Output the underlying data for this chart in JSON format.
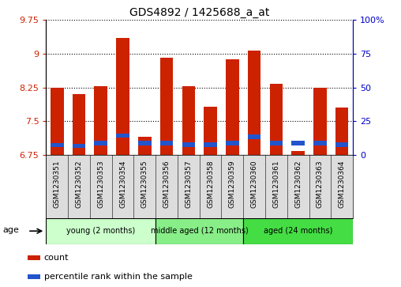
{
  "title": "GDS4892 / 1425688_a_at",
  "samples": [
    "GSM1230351",
    "GSM1230352",
    "GSM1230353",
    "GSM1230354",
    "GSM1230355",
    "GSM1230356",
    "GSM1230357",
    "GSM1230358",
    "GSM1230359",
    "GSM1230360",
    "GSM1230361",
    "GSM1230362",
    "GSM1230363",
    "GSM1230364"
  ],
  "count_values": [
    8.25,
    8.1,
    8.28,
    9.35,
    7.15,
    8.92,
    8.28,
    7.82,
    8.88,
    9.07,
    8.33,
    6.84,
    8.25,
    7.8
  ],
  "percentile_values": [
    6.97,
    6.95,
    7.02,
    7.18,
    7.02,
    7.02,
    6.98,
    6.98,
    7.02,
    7.15,
    7.02,
    7.02,
    7.02,
    6.98
  ],
  "ymin": 6.75,
  "ymax": 9.75,
  "yticks": [
    6.75,
    7.5,
    8.25,
    9.0,
    9.75
  ],
  "ytick_labels": [
    "6.75",
    "7.5",
    "8.25",
    "9",
    "9.75"
  ],
  "right_yticks": [
    0,
    25,
    50,
    75,
    100
  ],
  "right_ytick_labels": [
    "0",
    "25",
    "50",
    "75",
    "100%"
  ],
  "bar_color": "#cc2200",
  "percentile_color": "#2255cc",
  "bar_width": 0.6,
  "groups": [
    {
      "label": "young (2 months)",
      "start": 0,
      "end": 5
    },
    {
      "label": "middle aged (12 months)",
      "start": 5,
      "end": 9
    },
    {
      "label": "aged (24 months)",
      "start": 9,
      "end": 14
    }
  ],
  "group_colors": [
    "#ccffcc",
    "#88ee88",
    "#44dd44"
  ],
  "age_label": "age",
  "legend_count": "count",
  "legend_percentile": "percentile rank within the sample",
  "title_fontsize": 10,
  "tick_fontsize": 8,
  "sample_tick_fontsize": 6.5
}
